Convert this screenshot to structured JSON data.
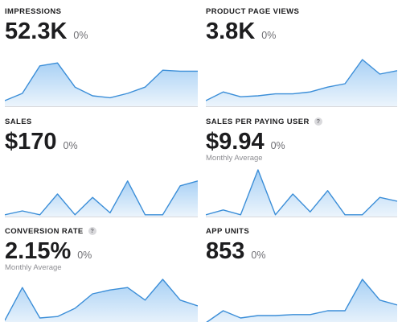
{
  "colors": {
    "line": "#3b8ed8",
    "fill_top": "#a9d1f5",
    "fill_bottom": "#edf5fc",
    "baseline": "#d8d8dc"
  },
  "metrics": [
    {
      "id": "impressions",
      "label": "IMPRESSIONS",
      "value": "52.3K",
      "change": "0%",
      "sparkline": [
        0.1,
        0.25,
        0.82,
        0.88,
        0.38,
        0.2,
        0.16,
        0.25,
        0.38,
        0.73,
        0.71,
        0.71
      ]
    },
    {
      "id": "product-page-views",
      "label": "PRODUCT PAGE VIEWS",
      "value": "3.8K",
      "change": "0%",
      "sparkline": [
        0.1,
        0.28,
        0.18,
        0.2,
        0.24,
        0.24,
        0.28,
        0.38,
        0.45,
        0.95,
        0.65,
        0.72
      ]
    },
    {
      "id": "sales",
      "label": "SALES",
      "value": "$170",
      "change": "0%",
      "sparkline": [
        0.02,
        0.1,
        0.02,
        0.45,
        0.02,
        0.38,
        0.06,
        0.72,
        0.02,
        0.02,
        0.62,
        0.72
      ]
    },
    {
      "id": "sales-per-paying-user",
      "label": "SALES PER PAYING USER",
      "help": "?",
      "value": "$9.94",
      "change": "0%",
      "subtitle": "Monthly Average",
      "sparkline": [
        0.02,
        0.12,
        0.02,
        0.95,
        0.02,
        0.45,
        0.08,
        0.52,
        0.02,
        0.02,
        0.38,
        0.3
      ]
    },
    {
      "id": "conversion-rate",
      "label": "CONVERSION RATE",
      "help": "?",
      "value": "2.15%",
      "change": "0%",
      "subtitle": "Monthly Average",
      "sparkline": [
        0.1,
        0.78,
        0.15,
        0.18,
        0.35,
        0.65,
        0.73,
        0.78,
        0.52,
        0.95,
        0.52,
        0.4
      ]
    },
    {
      "id": "app-units",
      "label": "APP UNITS",
      "value": "853",
      "change": "0%",
      "sparkline": [
        0.05,
        0.3,
        0.15,
        0.2,
        0.2,
        0.22,
        0.22,
        0.3,
        0.3,
        0.95,
        0.52,
        0.42
      ]
    }
  ]
}
